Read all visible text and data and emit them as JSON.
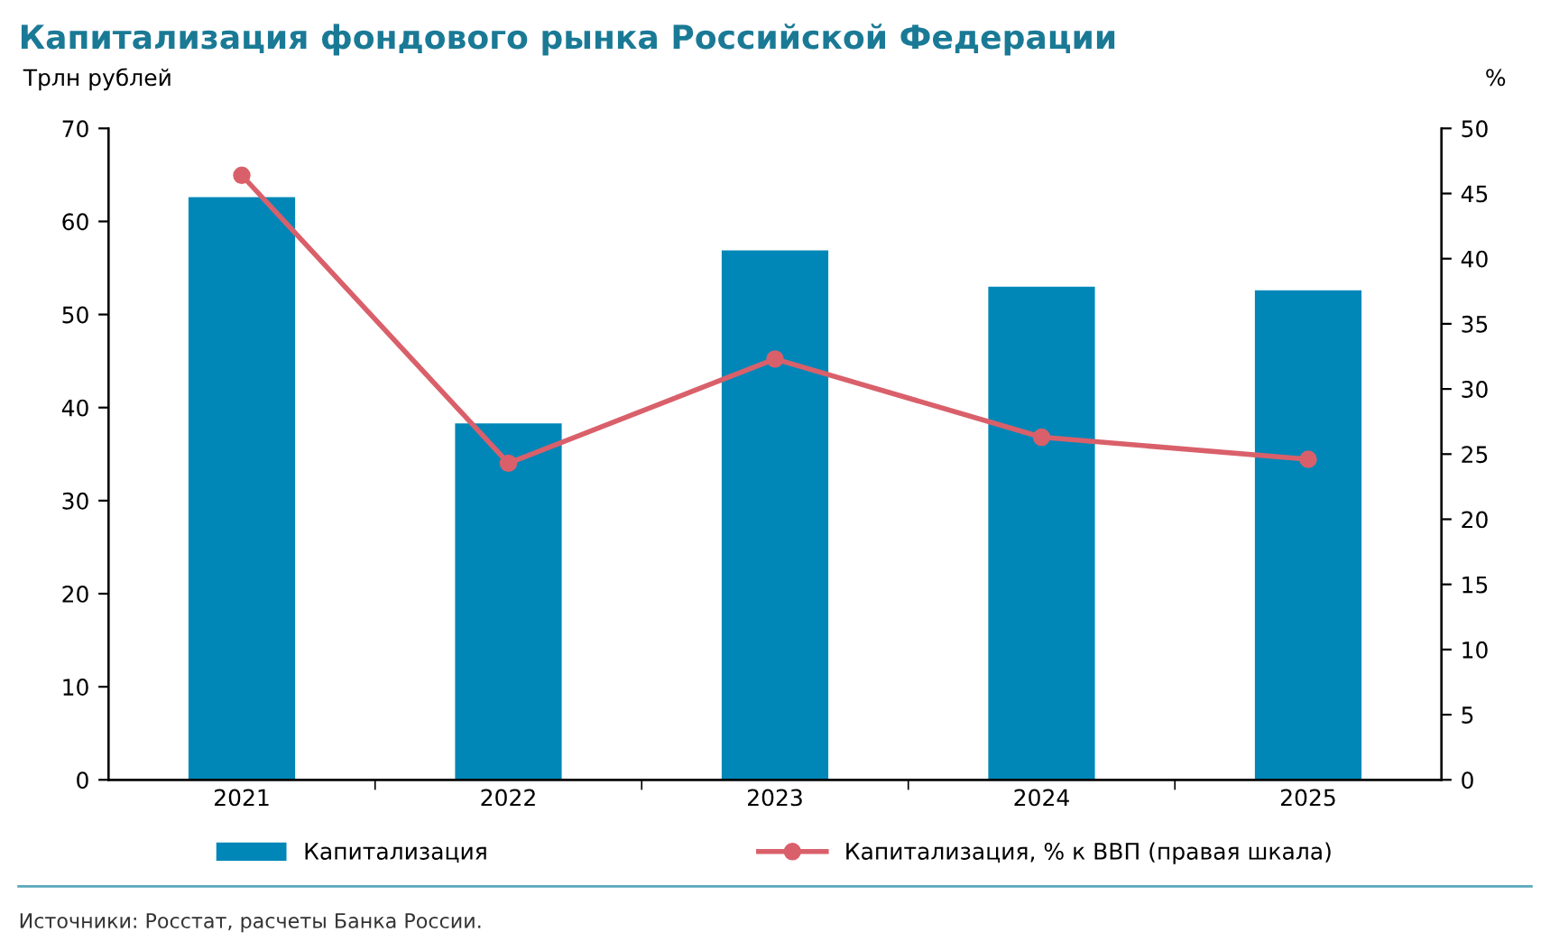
{
  "chart_data": {
    "type": "bar",
    "title": "Капитализация фондового рынка Российской Федерации",
    "ylabel": "Трлн рублей",
    "y2label": "%",
    "categories": [
      "2021",
      "2022",
      "2023",
      "2024",
      "2025"
    ],
    "series": [
      {
        "name": "Капитализация",
        "color": "#0087b8",
        "values": [
          62.6,
          38.3,
          56.9,
          53.0,
          52.6
        ]
      },
      {
        "name": "Капитализация, % к ВВП (правая шкала)",
        "type": "line",
        "axis": "y2",
        "color": "#d9606a",
        "values": [
          46.4,
          24.3,
          32.3,
          26.3,
          24.6
        ]
      }
    ],
    "ylim": [
      0,
      70
    ],
    "yticks": [
      0,
      10,
      20,
      30,
      40,
      50,
      60,
      70
    ],
    "y2lim": [
      0,
      50
    ],
    "y2ticks": [
      0,
      5,
      10,
      15,
      20,
      25,
      30,
      35,
      40,
      45,
      50
    ],
    "marker": "circle",
    "line_style": "solid",
    "legend": "bottom",
    "grid": false,
    "annotations": [
      "Источники: Росстат, расчеты Банка России."
    ]
  }
}
